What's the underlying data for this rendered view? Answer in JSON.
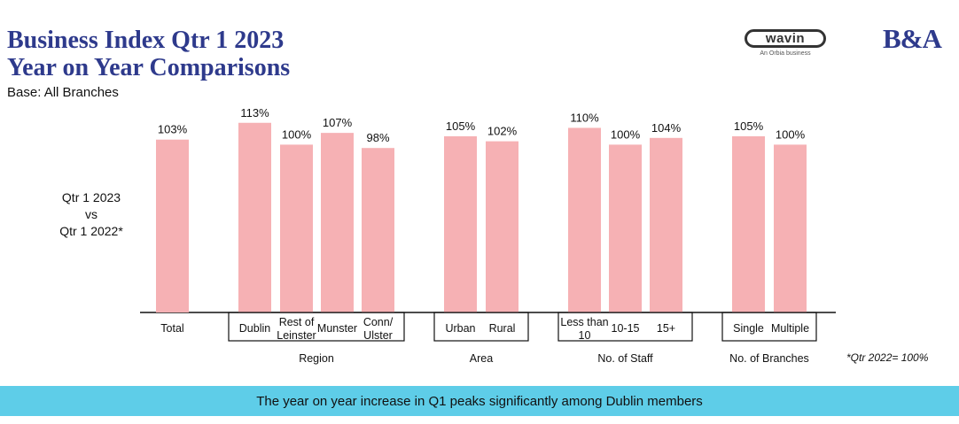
{
  "header": {
    "title_line1": "Business Index Qtr 1 2023",
    "title_line2": "Year on Year Comparisons",
    "base": "Base: All Branches"
  },
  "logos": {
    "wavin": "wavin",
    "wavin_sub": "An Orbia business",
    "ba": "B&A"
  },
  "y_label": [
    "Qtr 1 2023",
    "vs",
    "Qtr 1 2022*"
  ],
  "footnote": "*Qtr  2022= 100%",
  "banner": "The year on year increase in Q1 peaks significantly among Dublin members",
  "colors": {
    "bar": "#f6b1b4",
    "title": "#2e3a8c",
    "banner": "#5ecde8"
  },
  "chart_data": {
    "type": "bar",
    "title": "Business Index Qtr 1 2023 Year on Year Comparisons",
    "ylabel": "Qtr 1 2023 vs Qtr 1 2022*",
    "ylim": [
      0,
      115
    ],
    "unit": "%",
    "categories": [
      "Total",
      "Dublin",
      "Rest of Leinster",
      "Munster",
      "Conn/ Ulster",
      "Urban",
      "Rural",
      "Less than 10",
      "10-15",
      "15+",
      "Single",
      "Multiple"
    ],
    "values": [
      103,
      113,
      100,
      107,
      98,
      105,
      102,
      110,
      100,
      104,
      105,
      100
    ],
    "data_labels": [
      "103%",
      "113%",
      "100%",
      "107%",
      "98%",
      "105%",
      "102%",
      "110%",
      "100%",
      "104%",
      "105%",
      "100%"
    ],
    "category_labels": [
      [
        "Total"
      ],
      [
        "Dublin"
      ],
      [
        "Rest of",
        "Leinster"
      ],
      [
        "Munster"
      ],
      [
        "Conn/",
        "Ulster"
      ],
      [
        "Urban"
      ],
      [
        "Rural"
      ],
      [
        "Less than",
        "10"
      ],
      [
        "10-15"
      ],
      [
        "15+"
      ],
      [
        "Single"
      ],
      [
        "Multiple"
      ]
    ],
    "groups": [
      {
        "name": "",
        "members": [
          0
        ]
      },
      {
        "name": "Region",
        "members": [
          1,
          2,
          3,
          4
        ]
      },
      {
        "name": "Area",
        "members": [
          5,
          6
        ]
      },
      {
        "name": "No. of Staff",
        "members": [
          7,
          8,
          9
        ]
      },
      {
        "name": "No. of Branches",
        "members": [
          10,
          11
        ]
      }
    ]
  }
}
